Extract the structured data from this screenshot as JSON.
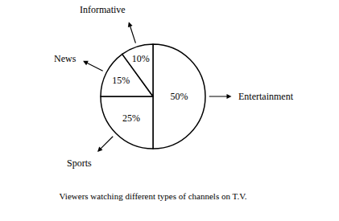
{
  "chart_data": {
    "type": "pie",
    "title": "Viewers watching different types of channels on T.V.",
    "categories": [
      "Entertainment",
      "Sports",
      "News",
      "Informative"
    ],
    "values": [
      50,
      25,
      15,
      10
    ],
    "value_labels": [
      "50%",
      "25%",
      "15%",
      "10%"
    ],
    "data_labels": true,
    "color": "#ffffff"
  }
}
